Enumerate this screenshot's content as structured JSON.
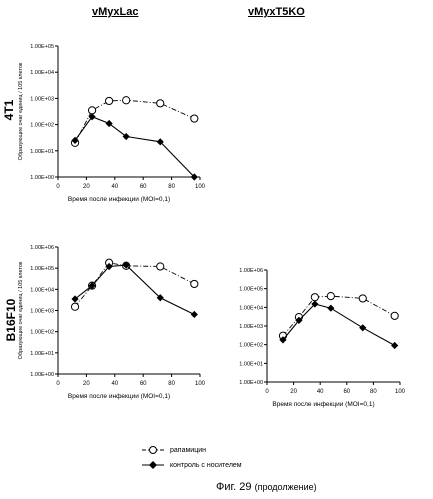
{
  "headers": {
    "col1": "vMyxLac",
    "col2": "vMyxT5KO",
    "row1": "4T1",
    "row2": "B16F10"
  },
  "caption": {
    "main": "Фиг. 29",
    "sub": "(продолжение)"
  },
  "legend": [
    {
      "label": "рапамицин",
      "marker": "open-circle",
      "line": "dash-dot"
    },
    {
      "label": "контроль с носителем",
      "marker": "filled-diamond",
      "line": "solid"
    }
  ],
  "chart_data": [
    {
      "id": "4T1-vMyxLac",
      "type": "line",
      "y_scale": "log",
      "ylabel": "Образующие очаг единиц / 105 клеток",
      "xlabel": "Время после инфекции (MOI=0,1)",
      "xlim": [
        0,
        100
      ],
      "ylim": [
        1,
        100000
      ],
      "x_ticks": [
        "0",
        "20",
        "40",
        "60",
        "80",
        "100"
      ],
      "y_ticks": [
        "1.00E+00",
        "1.00E+01",
        "1.00E+02",
        "1.00E+03",
        "1.00E+04",
        "1.00E+05"
      ],
      "series": [
        {
          "name": "рапамицин",
          "x": [
            12,
            24,
            36,
            48,
            72,
            96
          ],
          "y": [
            20,
            350,
            800,
            850,
            650,
            170
          ]
        },
        {
          "name": "контроль с носителем",
          "x": [
            12,
            24,
            36,
            48,
            72,
            96
          ],
          "y": [
            25,
            200,
            110,
            35,
            22,
            1
          ]
        }
      ]
    },
    {
      "id": "B16F10-vMyxLac",
      "type": "line",
      "y_scale": "log",
      "ylabel": "Образующие очаг единиц / 105 клеток",
      "xlabel": "Время после инфекции (MOI=0,1)",
      "xlim": [
        0,
        100
      ],
      "ylim": [
        1,
        1000000
      ],
      "x_ticks": [
        "0",
        "20",
        "40",
        "60",
        "80",
        "100"
      ],
      "y_ticks": [
        "1.00E+00",
        "1.00E+01",
        "1.00E+02",
        "1.00E+03",
        "1.00E+04",
        "1.00E+05",
        "1.00E+06"
      ],
      "series": [
        {
          "name": "рапамицин",
          "x": [
            12,
            24,
            36,
            48,
            72,
            96
          ],
          "y": [
            1500,
            15000,
            180000,
            130000,
            120000,
            18000
          ]
        },
        {
          "name": "контроль с носителем",
          "x": [
            12,
            24,
            36,
            48,
            72,
            96
          ],
          "y": [
            3500,
            15000,
            120000,
            140000,
            4000,
            650
          ]
        }
      ]
    },
    {
      "id": "B16F10-vMyxT5KO",
      "type": "line",
      "y_scale": "log",
      "ylabel": "",
      "xlabel": "Время после инфекции (MOI=0,1)",
      "xlim": [
        0,
        100
      ],
      "ylim": [
        1,
        1000000
      ],
      "x_ticks": [
        "0",
        "20",
        "40",
        "60",
        "80",
        "100"
      ],
      "y_ticks": [
        "1.00E+00",
        "1.00E+01",
        "1.00E+02",
        "1.00E+03",
        "1.00E+04",
        "1.00E+05",
        "1.00E+06"
      ],
      "series": [
        {
          "name": "рапамицин",
          "x": [
            12,
            24,
            36,
            48,
            72,
            96
          ],
          "y": [
            300,
            3000,
            35000,
            40000,
            30000,
            3500
          ]
        },
        {
          "name": "контроль с носителем",
          "x": [
            12,
            24,
            36,
            48,
            72,
            96
          ],
          "y": [
            180,
            2000,
            15000,
            9000,
            800,
            90
          ]
        }
      ]
    }
  ]
}
